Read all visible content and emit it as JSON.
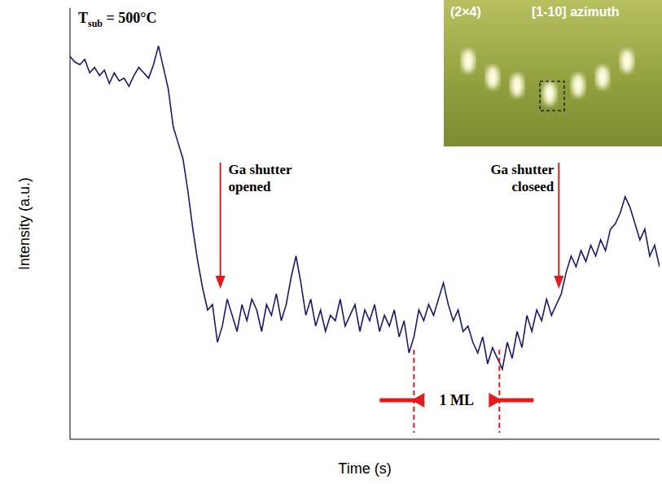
{
  "chart_data": {
    "type": "line",
    "xlabel": "Time (s)",
    "ylabel": "Intensity (a.u.)",
    "color": "#191970",
    "marker": "none",
    "line_style": "solid",
    "grid": false,
    "tick_labels": false,
    "xlim": [
      0,
      12
    ],
    "xticks": [
      0,
      1,
      2,
      3,
      4,
      5,
      6,
      7,
      8,
      9,
      10,
      11,
      12
    ],
    "ylim": [
      0,
      8
    ],
    "yticks": [
      0.5,
      1.5,
      2.5,
      3.5,
      4.5,
      5.5,
      6.5,
      7.5
    ],
    "x": [
      0,
      0.1,
      0.2,
      0.3,
      0.4,
      0.5,
      0.6,
      0.7,
      0.8,
      0.9,
      1.0,
      1.1,
      1.2,
      1.3,
      1.4,
      1.5,
      1.6,
      1.7,
      1.8,
      1.9,
      2.0,
      2.1,
      2.2,
      2.3,
      2.4,
      2.5,
      2.6,
      2.7,
      2.8,
      2.9,
      3.0,
      3.1,
      3.2,
      3.3,
      3.4,
      3.5,
      3.6,
      3.7,
      3.8,
      3.9,
      4.0,
      4.1,
      4.2,
      4.3,
      4.4,
      4.5,
      4.6,
      4.7,
      4.8,
      4.9,
      5.0,
      5.1,
      5.2,
      5.3,
      5.4,
      5.5,
      5.6,
      5.7,
      5.8,
      5.9,
      6.0,
      6.1,
      6.2,
      6.3,
      6.4,
      6.5,
      6.6,
      6.7,
      6.8,
      6.9,
      7.0,
      7.1,
      7.2,
      7.3,
      7.4,
      7.5,
      7.6,
      7.7,
      7.8,
      7.9,
      8.0,
      8.1,
      8.2,
      8.3,
      8.4,
      8.5,
      8.6,
      8.7,
      8.8,
      8.9,
      9.0,
      9.1,
      9.2,
      9.3,
      9.4,
      9.5,
      9.6,
      9.7,
      9.8,
      9.9,
      10.0,
      10.1,
      10.2,
      10.3,
      10.4,
      10.5,
      10.6,
      10.7,
      10.8,
      10.9,
      11.0,
      11.1,
      11.2,
      11.3,
      11.4,
      11.5,
      11.6,
      11.7,
      11.8,
      11.9,
      12.0
    ],
    "values": [
      7.1,
      7.0,
      6.95,
      7.05,
      6.8,
      6.9,
      6.75,
      6.85,
      6.6,
      6.8,
      6.65,
      6.7,
      6.55,
      6.75,
      6.9,
      6.8,
      6.7,
      6.95,
      7.3,
      6.9,
      6.5,
      5.8,
      5.5,
      5.2,
      4.6,
      3.9,
      3.3,
      2.8,
      2.4,
      2.5,
      1.8,
      2.1,
      2.6,
      2.3,
      2.0,
      2.5,
      2.2,
      2.6,
      2.4,
      2.0,
      2.5,
      2.3,
      2.7,
      2.2,
      2.5,
      3.0,
      3.4,
      2.9,
      2.3,
      2.6,
      2.1,
      2.4,
      2.0,
      2.3,
      2.2,
      2.6,
      2.1,
      2.3,
      2.5,
      2.0,
      2.4,
      2.2,
      2.5,
      2.0,
      2.3,
      2.1,
      2.4,
      1.9,
      2.2,
      1.6,
      1.9,
      2.4,
      2.2,
      2.5,
      2.3,
      2.6,
      2.9,
      2.5,
      2.2,
      2.4,
      2.0,
      2.1,
      1.8,
      1.6,
      1.9,
      1.4,
      1.7,
      1.5,
      1.3,
      1.8,
      1.5,
      2.0,
      1.7,
      2.3,
      2.0,
      2.4,
      2.2,
      2.6,
      2.3,
      2.5,
      2.7,
      3.1,
      3.4,
      3.2,
      3.5,
      3.3,
      3.6,
      3.4,
      3.7,
      3.5,
      3.9,
      4.0,
      4.2,
      4.5,
      4.3,
      4.0,
      3.7,
      3.9,
      3.4,
      3.6,
      3.2
    ],
    "annotations": [
      {
        "text": "Ga shutter opened",
        "x": 3.06,
        "color": "#e31a1c"
      },
      {
        "text": "Ga shutter closeed",
        "x": 9.95,
        "color": "#e31a1c"
      }
    ],
    "bracket": {
      "text": "1 ML",
      "x": [
        7.0,
        8.74
      ],
      "color": "#e31a1c"
    },
    "label": {
      "base": "T",
      "subscript": "sub",
      "text": " = 500°C"
    },
    "inset": {
      "labels": [
        "(2×4)",
        "[1-10] azimuth"
      ]
    }
  }
}
